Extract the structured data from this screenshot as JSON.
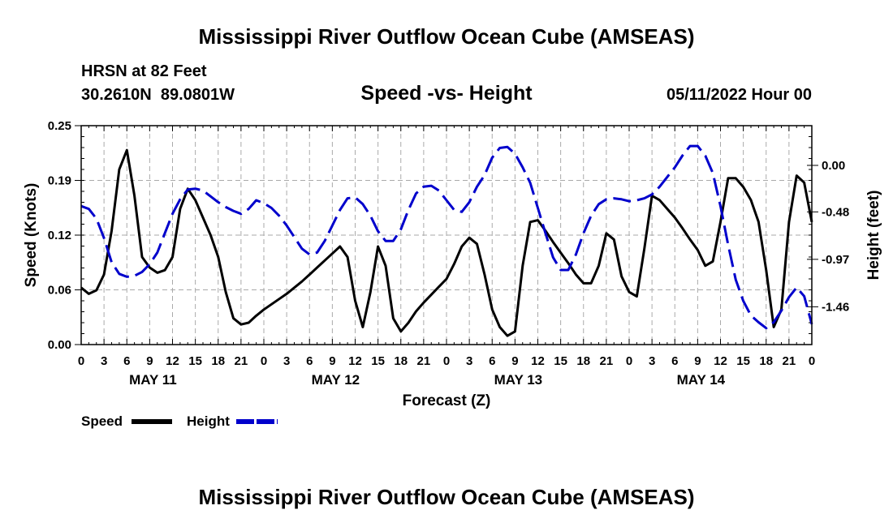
{
  "title": "Mississippi River Outflow Ocean Cube (AMSEAS)",
  "title_repeat": "Mississippi River Outflow Ocean Cube (AMSEAS)",
  "station": "HRSN at 82 Feet",
  "coords": "30.2610N  89.0801W",
  "subtitle": "Speed -vs- Height",
  "datetime": "05/11/2022 Hour 00",
  "chart_data": {
    "type": "line",
    "xlabel": "Forecast (Z)",
    "ylabel": "Speed (Knots)",
    "y2label": "Height (feet)",
    "x_unit": "hours from 05/11/2022 00Z",
    "xlim": [
      0,
      96
    ],
    "x_tick_labels": [
      "0",
      "3",
      "6",
      "9",
      "12",
      "15",
      "18",
      "21",
      "0",
      "3",
      "6",
      "9",
      "12",
      "15",
      "18",
      "21",
      "0",
      "3",
      "6",
      "9",
      "12",
      "15",
      "18",
      "21",
      "0",
      "3",
      "6",
      "9",
      "12",
      "15",
      "18",
      "21",
      "0"
    ],
    "date_labels": [
      {
        "text": "MAY 11",
        "hour": 9
      },
      {
        "text": "MAY 12",
        "hour": 33
      },
      {
        "text": "MAY 13",
        "hour": 57
      },
      {
        "text": "MAY 14",
        "hour": 81
      }
    ],
    "ylim": [
      0,
      0.25
    ],
    "y_tick_labels": [
      "0.00",
      "0.06",
      "0.12",
      "0.19",
      "0.25"
    ],
    "y2lim": [
      -1.85,
      0.41
    ],
    "y2_tick_labels": [
      "-1.46",
      "-0.97",
      "-0.48",
      "0.00"
    ],
    "grid": true,
    "legend": {
      "position": "bottom-left",
      "speed_label": "Speed",
      "height_label": "Height"
    },
    "series": [
      {
        "name": "Speed",
        "axis": "left",
        "color": "#000000",
        "style": "solid",
        "x": [
          0,
          1,
          2,
          3,
          4,
          5,
          6,
          7,
          8,
          9,
          10,
          11,
          12,
          13,
          14,
          15,
          16,
          17,
          18,
          19,
          20,
          21,
          22,
          23,
          24,
          25,
          26,
          27,
          28,
          29,
          30,
          31,
          32,
          33,
          34,
          35,
          36,
          37,
          38,
          39,
          40,
          41,
          42,
          43,
          44,
          45,
          46,
          47,
          48,
          49,
          50,
          51,
          52,
          53,
          54,
          55,
          56,
          57,
          58,
          59,
          60,
          61,
          62,
          63,
          64,
          65,
          66,
          67,
          68,
          69,
          70,
          71,
          72,
          73,
          74,
          75,
          76,
          77,
          78,
          79,
          80,
          81,
          82,
          83,
          84,
          85,
          86,
          87,
          88,
          89,
          90,
          91,
          92,
          93,
          94,
          95,
          96
        ],
        "values": [
          0.065,
          0.058,
          0.062,
          0.08,
          0.13,
          0.2,
          0.222,
          0.17,
          0.1,
          0.088,
          0.082,
          0.085,
          0.1,
          0.155,
          0.178,
          0.165,
          0.145,
          0.125,
          0.1,
          0.06,
          0.03,
          0.023,
          0.025,
          0.033,
          0.04,
          0.046,
          0.052,
          0.058,
          0.065,
          0.072,
          0.08,
          0.088,
          0.096,
          0.104,
          0.112,
          0.1,
          0.05,
          0.02,
          0.06,
          0.112,
          0.09,
          0.03,
          0.015,
          0.025,
          0.038,
          0.048,
          0.057,
          0.066,
          0.075,
          0.092,
          0.112,
          0.122,
          0.115,
          0.08,
          0.04,
          0.02,
          0.01,
          0.015,
          0.09,
          0.14,
          0.142,
          0.13,
          0.117,
          0.105,
          0.093,
          0.08,
          0.07,
          0.07,
          0.09,
          0.127,
          0.12,
          0.078,
          0.06,
          0.055,
          0.11,
          0.17,
          0.165,
          0.155,
          0.145,
          0.133,
          0.12,
          0.108,
          0.09,
          0.095,
          0.14,
          0.19,
          0.19,
          0.18,
          0.165,
          0.14,
          0.085,
          0.02,
          0.04,
          0.14,
          0.193,
          0.185,
          0.14
        ]
      },
      {
        "name": "Height",
        "axis": "right",
        "color": "#0000cc",
        "style": "dashed",
        "x": [
          0,
          1,
          2,
          3,
          4,
          5,
          6,
          7,
          8,
          9,
          10,
          11,
          12,
          13,
          14,
          15,
          16,
          17,
          18,
          19,
          20,
          21,
          22,
          23,
          24,
          25,
          26,
          27,
          28,
          29,
          30,
          31,
          32,
          33,
          34,
          35,
          36,
          37,
          38,
          39,
          40,
          41,
          42,
          43,
          44,
          45,
          46,
          47,
          48,
          49,
          50,
          51,
          52,
          53,
          54,
          55,
          56,
          57,
          58,
          59,
          60,
          61,
          62,
          63,
          64,
          65,
          66,
          67,
          68,
          69,
          70,
          71,
          72,
          73,
          74,
          75,
          76,
          77,
          78,
          79,
          80,
          81,
          82,
          83,
          84,
          85,
          86,
          87,
          88,
          89,
          90,
          91,
          92,
          93,
          94,
          95,
          96
        ],
        "values": [
          -0.42,
          -0.45,
          -0.55,
          -0.75,
          -1.0,
          -1.12,
          -1.15,
          -1.14,
          -1.1,
          -1.02,
          -0.9,
          -0.7,
          -0.5,
          -0.35,
          -0.25,
          -0.24,
          -0.26,
          -0.32,
          -0.38,
          -0.43,
          -0.47,
          -0.5,
          -0.45,
          -0.36,
          -0.39,
          -0.44,
          -0.52,
          -0.62,
          -0.74,
          -0.86,
          -0.92,
          -0.9,
          -0.78,
          -0.62,
          -0.46,
          -0.34,
          -0.33,
          -0.4,
          -0.52,
          -0.68,
          -0.78,
          -0.78,
          -0.66,
          -0.46,
          -0.29,
          -0.22,
          -0.21,
          -0.26,
          -0.36,
          -0.46,
          -0.48,
          -0.38,
          -0.22,
          -0.1,
          0.08,
          0.18,
          0.19,
          0.12,
          -0.02,
          -0.18,
          -0.44,
          -0.7,
          -0.95,
          -1.08,
          -1.08,
          -0.92,
          -0.7,
          -0.52,
          -0.4,
          -0.35,
          -0.34,
          -0.35,
          -0.37,
          -0.36,
          -0.34,
          -0.3,
          -0.22,
          -0.12,
          -0.02,
          0.1,
          0.2,
          0.2,
          0.1,
          -0.08,
          -0.42,
          -0.82,
          -1.18,
          -1.4,
          -1.55,
          -1.62,
          -1.68,
          -1.62,
          -1.5,
          -1.36,
          -1.26,
          -1.35,
          -1.64
        ]
      }
    ]
  }
}
